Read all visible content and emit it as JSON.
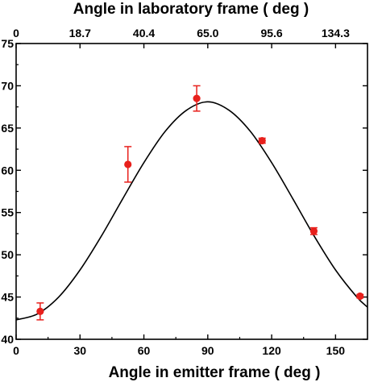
{
  "chart_data": {
    "type": "scatter",
    "top_axis": {
      "label": "Angle in laboratory frame ( deg )",
      "tick_labels": [
        "0",
        "18.7",
        "40.4",
        "65.0",
        "95.6",
        "134.3"
      ],
      "tick_positions_emitter_deg": [
        0,
        30,
        60,
        90,
        120,
        150
      ]
    },
    "xlabel": "Angle in emitter frame ( deg )",
    "xlim": [
      0,
      165
    ],
    "xticks": [
      0,
      30,
      60,
      90,
      120,
      150
    ],
    "ylabel": "",
    "ylim": [
      40,
      75
    ],
    "yticks": [
      40,
      45,
      50,
      55,
      60,
      65,
      70,
      75
    ],
    "y_tick_labels": [
      "40",
      "45",
      "50",
      "55",
      "60",
      "65",
      "70",
      "75"
    ],
    "grid": false,
    "colors": {
      "points": "#e8201c",
      "curve": "#000000",
      "axes": "#000000"
    },
    "points": [
      {
        "x": 11.3,
        "y": 43.3,
        "err": 1.0
      },
      {
        "x": 52.5,
        "y": 60.7,
        "err": 2.1
      },
      {
        "x": 84.8,
        "y": 68.5,
        "err": 1.5
      },
      {
        "x": 115.5,
        "y": 63.5,
        "err": 0.3
      },
      {
        "x": 139.8,
        "y": 52.8,
        "err": 0.4
      },
      {
        "x": 161.5,
        "y": 45.1,
        "err": 0.2
      }
    ],
    "fit": {
      "type": "line",
      "x": [
        0,
        10,
        20,
        30,
        40,
        50,
        60,
        70,
        80,
        90,
        100,
        110,
        120,
        130,
        140,
        150,
        160,
        165
      ],
      "y": [
        42.3,
        43.0,
        45.0,
        48.2,
        52.2,
        56.6,
        60.9,
        64.6,
        67.1,
        68.1,
        67.1,
        64.6,
        60.9,
        56.6,
        52.2,
        48.2,
        45.0,
        43.8
      ]
    }
  }
}
